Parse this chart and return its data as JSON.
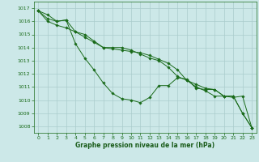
{
  "bg_color": "#cce8e8",
  "grid_color": "#aacccc",
  "line_color": "#1a6b1a",
  "marker_color": "#1a6b1a",
  "xlabel": "Graphe pression niveau de la mer (hPa)",
  "xlabel_color": "#1a5c1a",
  "tick_color": "#1a6b1a",
  "ylim": [
    1007.5,
    1017.5
  ],
  "xlim": [
    -0.5,
    23.5
  ],
  "yticks": [
    1008,
    1009,
    1010,
    1011,
    1012,
    1013,
    1014,
    1015,
    1016,
    1017
  ],
  "xticks": [
    0,
    1,
    2,
    3,
    4,
    5,
    6,
    7,
    8,
    9,
    10,
    11,
    12,
    13,
    14,
    15,
    16,
    17,
    18,
    19,
    20,
    21,
    22,
    23
  ],
  "series": [
    [
      1016.8,
      1016.5,
      1016.0,
      1016.1,
      1015.2,
      1015.0,
      1014.5,
      1014.0,
      1014.0,
      1014.0,
      1013.8,
      1013.5,
      1013.2,
      1013.0,
      1012.5,
      1011.8,
      1011.5,
      1011.2,
      1010.9,
      1010.8,
      1010.3,
      1010.3,
      1009.0,
      1007.9
    ],
    [
      1016.8,
      1016.2,
      1016.0,
      1016.1,
      1014.3,
      1013.2,
      1012.3,
      1011.3,
      1010.5,
      1010.1,
      1010.0,
      1009.8,
      1010.2,
      1011.1,
      1011.1,
      1011.7,
      1011.6,
      1010.9,
      1010.8,
      1010.8,
      1010.3,
      1010.3,
      1009.0,
      1007.9
    ],
    [
      1016.8,
      1016.0,
      1015.7,
      1015.5,
      1015.2,
      1014.8,
      1014.4,
      1014.0,
      1013.9,
      1013.8,
      1013.7,
      1013.6,
      1013.4,
      1013.1,
      1012.8,
      1012.3,
      1011.5,
      1011.0,
      1010.7,
      1010.3,
      1010.3,
      1010.2,
      1010.3,
      1007.9
    ]
  ]
}
